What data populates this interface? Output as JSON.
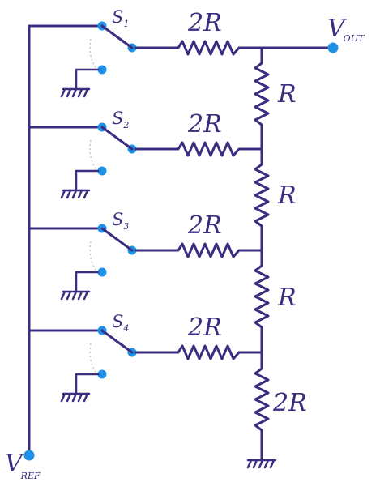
{
  "labels": {
    "vout": {
      "main": "V",
      "sub": "OUT"
    },
    "vref": {
      "main": "V",
      "sub": "REF"
    },
    "switches": [
      {
        "main": "S",
        "sub": "1"
      },
      {
        "main": "S",
        "sub": "2"
      },
      {
        "main": "S",
        "sub": "3"
      },
      {
        "main": "S",
        "sub": "4"
      }
    ],
    "series_resistors": [
      "2R",
      "2R",
      "2R",
      "2R"
    ],
    "ladder_resistors": [
      "R",
      "R",
      "R",
      "2R"
    ]
  },
  "colors": {
    "wire": "#3b2d7f",
    "terminal": "#1e90e6"
  }
}
